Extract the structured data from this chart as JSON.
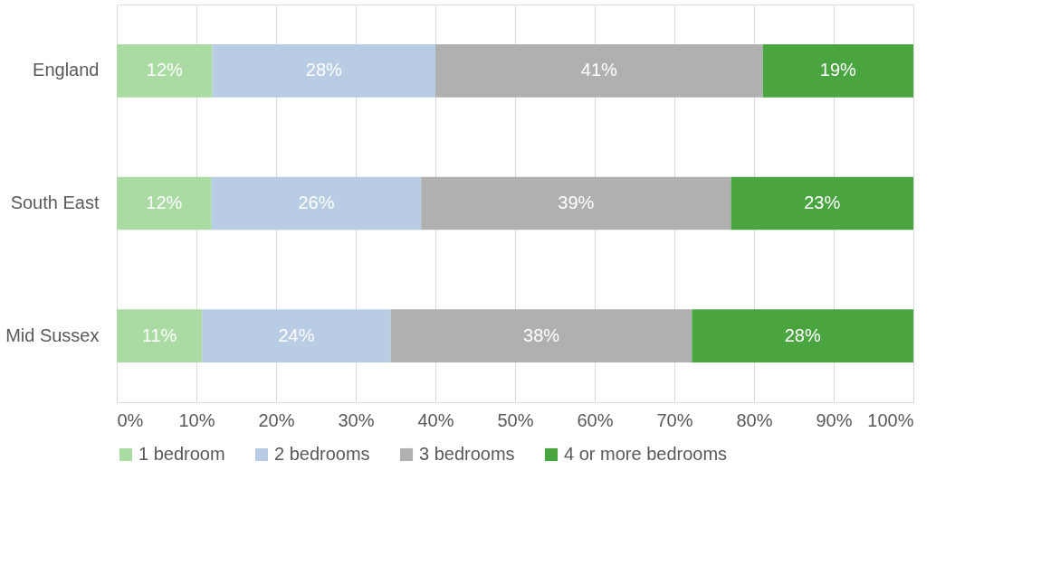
{
  "chart_data": {
    "type": "bar",
    "orientation": "horizontal",
    "stacked": true,
    "categories": [
      "England",
      "South East",
      "Mid Sussex"
    ],
    "series": [
      {
        "name": "1 bedroom",
        "color": "#a9dba3",
        "values": [
          12,
          11.9,
          10.7
        ],
        "value_labels": [
          "12%",
          "12%",
          "11%"
        ]
      },
      {
        "name": "2 bedrooms",
        "color": "#b8cce4",
        "values": [
          28,
          26.3,
          23.7
        ],
        "value_labels": [
          "28%",
          "26%",
          "24%"
        ]
      },
      {
        "name": "3 bedrooms",
        "color": "#b0b0b0",
        "values": [
          41.1,
          38.9,
          37.8
        ],
        "value_labels": [
          "41%",
          "39%",
          "38%"
        ]
      },
      {
        "name": "4 or more bedrooms",
        "color": "#4aa540",
        "values": [
          18.9,
          22.9,
          27.8
        ],
        "value_labels": [
          "19%",
          "23%",
          "28%"
        ]
      }
    ],
    "xlim": [
      0,
      100
    ],
    "xticks": [
      {
        "value": 0,
        "label": "0%"
      },
      {
        "value": 10,
        "label": "10%"
      },
      {
        "value": 20,
        "label": "20%"
      },
      {
        "value": 30,
        "label": "30%"
      },
      {
        "value": 40,
        "label": "40%"
      },
      {
        "value": 50,
        "label": "50%"
      },
      {
        "value": 60,
        "label": "60%"
      },
      {
        "value": 70,
        "label": "70%"
      },
      {
        "value": 80,
        "label": "80%"
      },
      {
        "value": 90,
        "label": "90%"
      },
      {
        "value": 100,
        "label": "100%"
      }
    ],
    "grid": "x",
    "legend": "bottom"
  }
}
